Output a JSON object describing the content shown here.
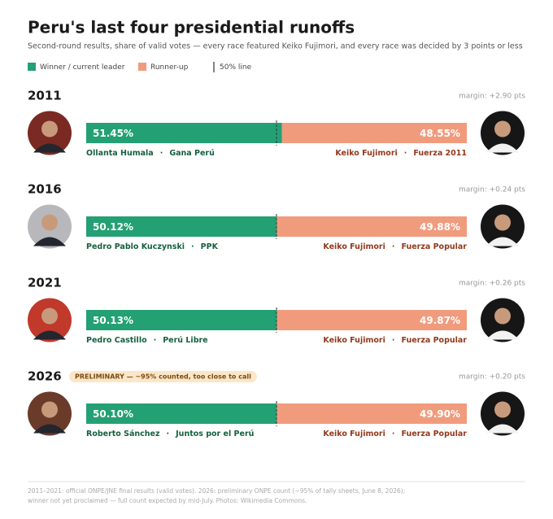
{
  "chart_data": {
    "type": "split-bar",
    "title": "Peru's last four presidential runoffs",
    "subtitle": "Second-round results, share of valid votes — every race featured Keiko Fujimori, and every race was decided by 3 points or less",
    "legend": {
      "winner": "Winner / current leader",
      "runnerup": "Runner-up",
      "reference": "50% line"
    },
    "colors": {
      "winner": "#23a074",
      "runnerup": "#f19b7d"
    },
    "xlim": [
      0,
      100
    ],
    "reference_line": 50,
    "separator": "·",
    "races": [
      {
        "year": "2011",
        "margin": "margin: +2.90 pts",
        "winner": {
          "name": "Ollanta Humala",
          "party": "Gana Perú",
          "value": 51.45,
          "value_label": "51.45%"
        },
        "runnerup": {
          "name": "Keiko Fujimori",
          "party": "Fuerza 2011",
          "value": 48.55,
          "value_label": "48.55%"
        }
      },
      {
        "year": "2016",
        "margin": "margin: +0.24 pts",
        "winner": {
          "name": "Pedro Pablo Kuczynski",
          "party": "PPK",
          "value": 50.12,
          "value_label": "50.12%"
        },
        "runnerup": {
          "name": "Keiko Fujimori",
          "party": "Fuerza Popular",
          "value": 49.88,
          "value_label": "49.88%"
        }
      },
      {
        "year": "2021",
        "margin": "margin: +0.26 pts",
        "winner": {
          "name": "Pedro Castillo",
          "party": "Perú Libre",
          "value": 50.13,
          "value_label": "50.13%"
        },
        "runnerup": {
          "name": "Keiko Fujimori",
          "party": "Fuerza Popular",
          "value": 49.87,
          "value_label": "49.87%"
        }
      },
      {
        "year": "2026",
        "margin": "margin: +0.20 pts",
        "badge": "PRELIMINARY — ~95% counted, too close to call",
        "winner": {
          "name": "Roberto Sánchez",
          "party": "Juntos por el Perú",
          "value": 50.1,
          "value_label": "50.10%"
        },
        "runnerup": {
          "name": "Keiko Fujimori",
          "party": "Fuerza Popular",
          "value": 49.9,
          "value_label": "49.90%"
        }
      }
    ],
    "footer": [
      "2011–2021: official ONPE/JNE final results (valid votes). 2026: preliminary ONPE count (~95% of tally sheets, June 8, 2026);",
      "winner not yet proclaimed — full count expected by mid-July. Photos: Wikimedia Commons."
    ]
  }
}
